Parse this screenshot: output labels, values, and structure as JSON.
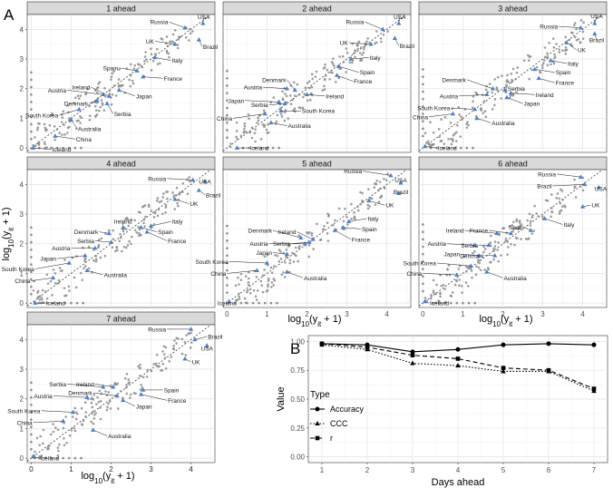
{
  "figure": {
    "panel_A_letter": "A",
    "panel_B_letter": "B",
    "shared_ylabel": "log10(yit + 1)",
    "shared_xlabel": "log10(yit + 1)"
  },
  "chart_data": [
    {
      "type": "scatter",
      "title": "1 ahead",
      "xlim": [
        -0.1,
        4.6
      ],
      "ylim": [
        -0.15,
        4.5
      ],
      "xticks": [
        0,
        1,
        2,
        3,
        4
      ],
      "yticks": [
        0,
        1,
        2,
        3,
        4
      ],
      "xtick_labels": [],
      "ytick_labels": [
        "0",
        "1",
        "2",
        "3",
        "4"
      ],
      "diagonal": "y = x",
      "countries": [
        {
          "name": "USA",
          "x": 4.3,
          "y": 4.2,
          "lx": 4.32,
          "ly": 4.42
        },
        {
          "name": "Russia",
          "x": 3.85,
          "y": 4.05,
          "lx": 3.45,
          "ly": 4.25
        },
        {
          "name": "Brazil",
          "x": 4.2,
          "y": 3.65,
          "lx": 4.28,
          "ly": 3.42
        },
        {
          "name": "UK",
          "x": 3.6,
          "y": 3.5,
          "lx": 3.1,
          "ly": 3.6
        },
        {
          "name": "Italy",
          "x": 3.1,
          "y": 3.05,
          "lx": 3.5,
          "ly": 2.95
        },
        {
          "name": "Spain",
          "x": 2.65,
          "y": 2.6,
          "lx": 2.2,
          "ly": 2.7
        },
        {
          "name": "France",
          "x": 2.8,
          "y": 2.4,
          "lx": 3.3,
          "ly": 2.35
        },
        {
          "name": "Austria",
          "x": 1.8,
          "y": 1.8,
          "lx": 0.9,
          "ly": 1.95
        },
        {
          "name": "Ireland",
          "x": 1.95,
          "y": 1.75,
          "lx": 1.5,
          "ly": 2.05
        },
        {
          "name": "Japan",
          "x": 2.2,
          "y": 1.95,
          "lx": 2.6,
          "ly": 1.75
        },
        {
          "name": "Denmark",
          "x": 1.65,
          "y": 1.6,
          "lx": 1.45,
          "ly": 1.5
        },
        {
          "name": "Serbia",
          "x": 1.9,
          "y": 1.5,
          "lx": 2.05,
          "ly": 1.15
        },
        {
          "name": "South Korea",
          "x": 1.2,
          "y": 1.3,
          "lx": 0.7,
          "ly": 1.1
        },
        {
          "name": "Australia",
          "x": 1.0,
          "y": 0.95,
          "lx": 1.15,
          "ly": 0.65
        },
        {
          "name": "China",
          "x": 0.6,
          "y": 0.4,
          "lx": 1.1,
          "ly": 0.3
        },
        {
          "name": "Iceland",
          "x": 0.05,
          "y": 0.0,
          "lx": 0.5,
          "ly": -0.05
        }
      ]
    },
    {
      "type": "scatter",
      "title": "2 ahead",
      "xlim": [
        -0.1,
        4.6
      ],
      "ylim": [
        -0.15,
        4.5
      ],
      "xticks": [
        0,
        1,
        2,
        3,
        4
      ],
      "yticks": [
        0,
        1,
        2,
        3,
        4
      ],
      "xtick_labels": [],
      "ytick_labels": [],
      "diagonal": "y = x",
      "countries": [
        {
          "name": "USA",
          "x": 4.3,
          "y": 4.2,
          "lx": 4.32,
          "ly": 4.42
        },
        {
          "name": "Russia",
          "x": 3.9,
          "y": 4.0,
          "lx": 3.45,
          "ly": 4.25
        },
        {
          "name": "Brazil",
          "x": 4.2,
          "y": 3.7,
          "lx": 4.3,
          "ly": 3.45
        },
        {
          "name": "UK",
          "x": 3.6,
          "y": 3.5,
          "lx": 3.05,
          "ly": 3.55
        },
        {
          "name": "Italy",
          "x": 3.1,
          "y": 3.0,
          "lx": 3.55,
          "ly": 3.05
        },
        {
          "name": "Spain",
          "x": 2.8,
          "y": 2.75,
          "lx": 3.3,
          "ly": 2.55
        },
        {
          "name": "France",
          "x": 2.75,
          "y": 2.45,
          "lx": 3.15,
          "ly": 2.25
        },
        {
          "name": "Austria",
          "x": 1.5,
          "y": 2.0,
          "lx": 0.9,
          "ly": 2.05
        },
        {
          "name": "Denmark",
          "x": 1.7,
          "y": 1.95,
          "lx": 1.5,
          "ly": 2.3
        },
        {
          "name": "Ireland",
          "x": 2.0,
          "y": 1.8,
          "lx": 2.45,
          "ly": 1.75
        },
        {
          "name": "Japan",
          "x": 1.3,
          "y": 1.55,
          "lx": 0.45,
          "ly": 1.6
        },
        {
          "name": "Serbia",
          "x": 1.45,
          "y": 1.5,
          "lx": 1.05,
          "ly": 1.45
        },
        {
          "name": "South Korea",
          "x": 1.35,
          "y": 1.25,
          "lx": 1.85,
          "ly": 1.25
        },
        {
          "name": "China",
          "x": 0.95,
          "y": 1.15,
          "lx": 0.15,
          "ly": 1.0
        },
        {
          "name": "Australia",
          "x": 1.1,
          "y": 0.85,
          "lx": 1.5,
          "ly": 0.75
        },
        {
          "name": "Iceland",
          "x": 0.25,
          "y": 0.0,
          "lx": 0.55,
          "ly": 0.0
        }
      ]
    },
    {
      "type": "scatter",
      "title": "3 ahead",
      "xlim": [
        -0.1,
        4.6
      ],
      "ylim": [
        -0.15,
        4.5
      ],
      "xticks": [
        0,
        1,
        2,
        3,
        4
      ],
      "yticks": [
        0,
        1,
        2,
        3,
        4
      ],
      "xtick_labels": [],
      "ytick_labels": [],
      "diagonal": "y = x",
      "countries": [
        {
          "name": "USA",
          "x": 4.3,
          "y": 4.2,
          "lx": 4.35,
          "ly": 4.45
        },
        {
          "name": "Russia",
          "x": 3.95,
          "y": 4.05,
          "lx": 3.4,
          "ly": 4.1
        },
        {
          "name": "Brazil",
          "x": 4.3,
          "y": 3.85,
          "lx": 4.35,
          "ly": 3.65
        },
        {
          "name": "UK",
          "x": 3.6,
          "y": 3.55,
          "lx": 3.85,
          "ly": 3.3
        },
        {
          "name": "Italy",
          "x": 3.2,
          "y": 2.95,
          "lx": 3.6,
          "ly": 2.85
        },
        {
          "name": "Spain",
          "x": 2.8,
          "y": 2.65,
          "lx": 3.3,
          "ly": 2.55
        },
        {
          "name": "France",
          "x": 2.9,
          "y": 2.35,
          "lx": 3.3,
          "ly": 2.2
        },
        {
          "name": "Denmark",
          "x": 1.75,
          "y": 2.0,
          "lx": 1.1,
          "ly": 2.3
        },
        {
          "name": "Serbia",
          "x": 2.05,
          "y": 1.95,
          "lx": 2.1,
          "ly": 2.0
        },
        {
          "name": "Austria",
          "x": 1.6,
          "y": 1.8,
          "lx": 0.9,
          "ly": 1.75
        },
        {
          "name": "Ireland",
          "x": 2.2,
          "y": 1.85,
          "lx": 2.8,
          "ly": 1.8
        },
        {
          "name": "Japan",
          "x": 2.1,
          "y": 1.7,
          "lx": 2.5,
          "ly": 1.5
        },
        {
          "name": "South Korea",
          "x": 1.3,
          "y": 1.3,
          "lx": 0.7,
          "ly": 1.35
        },
        {
          "name": "China",
          "x": 0.75,
          "y": 1.15,
          "lx": 0.15,
          "ly": 1.05
        },
        {
          "name": "Australia",
          "x": 1.35,
          "y": 1.0,
          "lx": 1.7,
          "ly": 0.85
        },
        {
          "name": "Iceland",
          "x": 0.05,
          "y": 0.05,
          "lx": 0.35,
          "ly": 0.0
        }
      ]
    },
    {
      "type": "scatter",
      "title": "4 ahead",
      "xlim": [
        -0.1,
        4.6
      ],
      "ylim": [
        -0.15,
        4.5
      ],
      "xticks": [
        0,
        1,
        2,
        3,
        4
      ],
      "yticks": [
        0,
        1,
        2,
        3,
        4
      ],
      "xtick_labels": [],
      "ytick_labels": [
        "0",
        "1",
        "2",
        "3",
        "4"
      ],
      "diagonal": "y = x",
      "countries": [
        {
          "name": "Russia",
          "x": 4.05,
          "y": 4.15,
          "lx": 3.4,
          "ly": 4.2
        },
        {
          "name": "USA",
          "x": 4.35,
          "y": 4.1,
          "lx": 4.35,
          "ly": 4.1
        },
        {
          "name": "Brazil",
          "x": 4.2,
          "y": 3.8,
          "lx": 4.35,
          "ly": 3.65
        },
        {
          "name": "UK",
          "x": 3.6,
          "y": 3.5,
          "lx": 3.95,
          "ly": 3.35
        },
        {
          "name": "Ireland",
          "x": 2.3,
          "y": 2.55,
          "lx": 2.3,
          "ly": 2.75
        },
        {
          "name": "Italy",
          "x": 3.0,
          "y": 2.6,
          "lx": 3.5,
          "ly": 2.75
        },
        {
          "name": "Spain",
          "x": 2.75,
          "y": 2.55,
          "lx": 3.15,
          "ly": 2.4
        },
        {
          "name": "France",
          "x": 2.9,
          "y": 2.4,
          "lx": 3.4,
          "ly": 2.1
        },
        {
          "name": "Denmark",
          "x": 1.95,
          "y": 2.35,
          "lx": 1.7,
          "ly": 2.4
        },
        {
          "name": "Serbia",
          "x": 2.0,
          "y": 2.05,
          "lx": 1.6,
          "ly": 2.1
        },
        {
          "name": "Austria",
          "x": 1.6,
          "y": 1.85,
          "lx": 1.0,
          "ly": 1.85
        },
        {
          "name": "Japan",
          "x": 1.35,
          "y": 1.6,
          "lx": 0.65,
          "ly": 1.5
        },
        {
          "name": "South Korea",
          "x": 0.95,
          "y": 1.35,
          "lx": 0.1,
          "ly": 1.15
        },
        {
          "name": "China",
          "x": 0.55,
          "y": 0.85,
          "lx": 0.0,
          "ly": 0.75
        },
        {
          "name": "Australia",
          "x": 1.4,
          "y": 1.1,
          "lx": 1.8,
          "ly": 0.95
        },
        {
          "name": "Iceland",
          "x": 0.1,
          "y": 0.0,
          "lx": 0.35,
          "ly": 0.0
        }
      ]
    },
    {
      "type": "scatter",
      "title": "5 ahead",
      "xlim": [
        -0.1,
        4.6
      ],
      "ylim": [
        -0.15,
        4.5
      ],
      "xticks": [
        0,
        1,
        2,
        3,
        4
      ],
      "yticks": [
        0,
        1,
        2,
        3,
        4
      ],
      "xtick_labels": [],
      "ytick_labels": [],
      "diagonal": "y = x",
      "countries": [
        {
          "name": "Russia",
          "x": 4.1,
          "y": 4.3,
          "lx": 3.4,
          "ly": 4.45
        },
        {
          "name": "USA",
          "x": 4.35,
          "y": 4.05,
          "lx": 4.35,
          "ly": 4.15
        },
        {
          "name": "Brazil",
          "x": 4.3,
          "y": 3.7,
          "lx": 4.35,
          "ly": 3.75
        },
        {
          "name": "UK",
          "x": 3.55,
          "y": 3.45,
          "lx": 3.95,
          "ly": 3.3
        },
        {
          "name": "Italy",
          "x": 3.05,
          "y": 2.75,
          "lx": 3.5,
          "ly": 2.85
        },
        {
          "name": "Spain",
          "x": 2.9,
          "y": 2.55,
          "lx": 3.35,
          "ly": 2.5
        },
        {
          "name": "France",
          "x": 2.7,
          "y": 2.45,
          "lx": 3.1,
          "ly": 2.15
        },
        {
          "name": "Denmark",
          "x": 1.85,
          "y": 2.2,
          "lx": 1.15,
          "ly": 2.45
        },
        {
          "name": "Ireland",
          "x": 2.15,
          "y": 2.15,
          "lx": 1.75,
          "ly": 2.4
        },
        {
          "name": "Austria",
          "x": 1.95,
          "y": 2.0,
          "lx": 1.05,
          "ly": 2.0
        },
        {
          "name": "Serbia",
          "x": 2.05,
          "y": 2.05,
          "lx": 1.6,
          "ly": 2.0
        },
        {
          "name": "Japan",
          "x": 1.5,
          "y": 1.65,
          "lx": 1.15,
          "ly": 1.7
        },
        {
          "name": "South Korea",
          "x": 1.0,
          "y": 1.35,
          "lx": 0.05,
          "ly": 1.4
        },
        {
          "name": "China",
          "x": 0.75,
          "y": 1.1,
          "lx": 0.0,
          "ly": 1.0
        },
        {
          "name": "Australia",
          "x": 1.5,
          "y": 1.05,
          "lx": 1.9,
          "ly": 0.85
        },
        {
          "name": "Iceland",
          "x": 0.05,
          "y": 0.05,
          "lx": 0.0,
          "ly": 0.0
        }
      ]
    },
    {
      "type": "scatter",
      "title": "6 ahead",
      "xlim": [
        -0.1,
        4.6
      ],
      "ylim": [
        -0.15,
        4.5
      ],
      "xticks": [
        0,
        1,
        2,
        3,
        4
      ],
      "yticks": [
        0,
        1,
        2,
        3,
        4
      ],
      "xtick_labels": [],
      "ytick_labels": [],
      "diagonal": "y = x",
      "countries": [
        {
          "name": "Russia",
          "x": 3.95,
          "y": 4.25,
          "lx": 3.35,
          "ly": 4.35
        },
        {
          "name": "Brazil",
          "x": 4.05,
          "y": 4.0,
          "lx": 3.25,
          "ly": 3.95
        },
        {
          "name": "USA",
          "x": 4.4,
          "y": 3.9,
          "lx": 4.45,
          "ly": 3.85
        },
        {
          "name": "UK",
          "x": 4.0,
          "y": 3.25,
          "lx": 4.2,
          "ly": 3.3
        },
        {
          "name": "Italy",
          "x": 3.05,
          "y": 2.85,
          "lx": 3.5,
          "ly": 2.65
        },
        {
          "name": "Ireland",
          "x": 1.85,
          "y": 2.35,
          "lx": 1.05,
          "ly": 2.45
        },
        {
          "name": "France",
          "x": 2.2,
          "y": 2.35,
          "lx": 1.65,
          "ly": 2.45
        },
        {
          "name": "Spain",
          "x": 2.7,
          "y": 2.45,
          "lx": 2.55,
          "ly": 2.55
        },
        {
          "name": "Austria",
          "x": 1.3,
          "y": 1.95,
          "lx": 0.6,
          "ly": 2.0
        },
        {
          "name": "Serbia",
          "x": 1.65,
          "y": 1.95,
          "lx": 1.4,
          "ly": 1.95
        },
        {
          "name": "Japan",
          "x": 1.4,
          "y": 1.6,
          "lx": 0.95,
          "ly": 1.65
        },
        {
          "name": "Denmark",
          "x": 1.8,
          "y": 1.6,
          "lx": 1.55,
          "ly": 1.6
        },
        {
          "name": "South Korea",
          "x": 1.2,
          "y": 1.25,
          "lx": 0.35,
          "ly": 1.35
        },
        {
          "name": "China",
          "x": 0.85,
          "y": 0.95,
          "lx": 0.0,
          "ly": 1.0
        },
        {
          "name": "Australia",
          "x": 1.6,
          "y": 1.05,
          "lx": 2.0,
          "ly": 0.85
        },
        {
          "name": "Iceland",
          "x": 0.05,
          "y": 0.05,
          "lx": 0.15,
          "ly": 0.0
        }
      ]
    },
    {
      "type": "scatter",
      "title": "7 ahead",
      "xlim": [
        -0.1,
        4.6
      ],
      "ylim": [
        -0.15,
        4.5
      ],
      "xticks": [
        0,
        1,
        2,
        3,
        4
      ],
      "yticks": [
        0,
        1,
        2,
        3,
        4
      ],
      "xtick_labels": [
        "0",
        "1",
        "2",
        "3",
        "4"
      ],
      "ytick_labels": [
        "0",
        "1",
        "2",
        "3",
        "4"
      ],
      "diagonal": "y = x",
      "countries": [
        {
          "name": "Russia",
          "x": 4.0,
          "y": 4.35,
          "lx": 3.4,
          "ly": 4.35
        },
        {
          "name": "Brazil",
          "x": 4.1,
          "y": 4.0,
          "lx": 4.4,
          "ly": 4.1
        },
        {
          "name": "USA",
          "x": 4.4,
          "y": 3.8,
          "lx": 4.4,
          "ly": 3.7
        },
        {
          "name": "UK",
          "x": 3.85,
          "y": 3.35,
          "lx": 4.0,
          "ly": 3.25
        },
        {
          "name": "Serbia",
          "x": 1.8,
          "y": 2.4,
          "lx": 0.9,
          "ly": 2.5
        },
        {
          "name": "Ireland",
          "x": 2.05,
          "y": 2.4,
          "lx": 1.6,
          "ly": 2.5
        },
        {
          "name": "Austria",
          "x": 1.4,
          "y": 2.05,
          "lx": 0.55,
          "ly": 2.1
        },
        {
          "name": "Denmark",
          "x": 2.15,
          "y": 2.1,
          "lx": 1.55,
          "ly": 2.2
        },
        {
          "name": "Spain",
          "x": 2.8,
          "y": 2.3,
          "lx": 3.3,
          "ly": 2.3
        },
        {
          "name": "France",
          "x": 2.75,
          "y": 2.15,
          "lx": 3.4,
          "ly": 1.95
        },
        {
          "name": "Japan",
          "x": 2.3,
          "y": 1.95,
          "lx": 2.6,
          "ly": 1.75
        },
        {
          "name": "South Korea",
          "x": 1.05,
          "y": 1.55,
          "lx": 0.25,
          "ly": 1.6
        },
        {
          "name": "China",
          "x": 0.8,
          "y": 1.25,
          "lx": 0.05,
          "ly": 1.2
        },
        {
          "name": "Australia",
          "x": 1.55,
          "y": 0.95,
          "lx": 1.9,
          "ly": 0.75
        },
        {
          "name": "Iceland",
          "x": 0.05,
          "y": 0.05,
          "lx": 0.2,
          "ly": 0.0
        }
      ]
    },
    {
      "type": "line",
      "title": "",
      "xlabel": "Days ahead",
      "ylabel": "Value",
      "x": [
        1,
        2,
        3,
        4,
        5,
        6,
        7
      ],
      "xlim": [
        0.7,
        7.3
      ],
      "ylim": [
        -0.05,
        1.05
      ],
      "yticks": [
        0.0,
        0.25,
        0.5,
        0.75,
        1.0
      ],
      "ytick_labels": [
        "0.00",
        "0.25",
        "0.50",
        "0.75",
        "1.00"
      ],
      "legend": {
        "title": "Type",
        "placement": "left-inside"
      },
      "series": [
        {
          "name": "Accuracy",
          "values": [
            0.98,
            0.97,
            0.91,
            0.93,
            0.97,
            0.98,
            0.97
          ],
          "dash": "solid",
          "marker": "circle"
        },
        {
          "name": "CCC",
          "values": [
            0.97,
            0.93,
            0.81,
            0.79,
            0.74,
            0.74,
            0.57
          ],
          "dash": "dotted",
          "marker": "triangle"
        },
        {
          "name": "r",
          "values": [
            0.98,
            0.95,
            0.88,
            0.85,
            0.77,
            0.75,
            0.59
          ],
          "dash": "dashed",
          "marker": "square"
        }
      ]
    }
  ]
}
